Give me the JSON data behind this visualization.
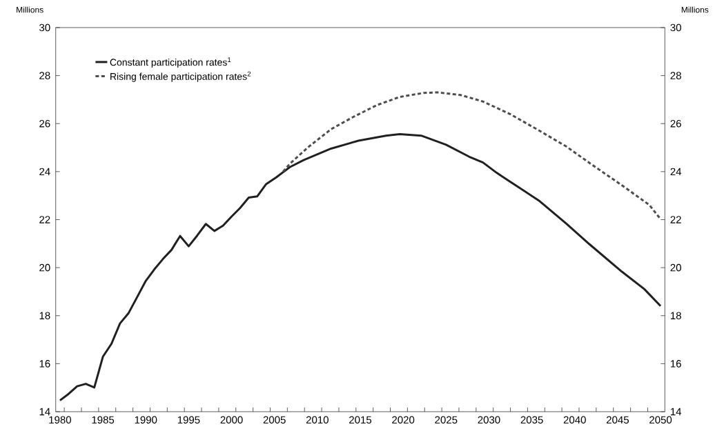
{
  "chart_data": {
    "type": "line",
    "ylabel": "Millions",
    "y2label": "Millions",
    "xlim": [
      1979.5,
      2050.5
    ],
    "xticks": [
      {
        "value": 1980,
        "label": "1980"
      },
      {
        "value": 1985,
        "label": "1985"
      },
      {
        "value": 1990,
        "label": "1990"
      },
      {
        "value": 1995,
        "label": "1995"
      },
      {
        "value": 2000,
        "label": "2000"
      },
      {
        "value": 2005,
        "label": "2005"
      },
      {
        "value": 2010,
        "label": "2010"
      },
      {
        "value": 2015,
        "label": "2015"
      },
      {
        "value": 2020,
        "label": "2020"
      },
      {
        "value": 2025,
        "label": "2025"
      },
      {
        "value": 2030,
        "label": "2030"
      },
      {
        "value": 2035,
        "label": "2035"
      },
      {
        "value": 2040,
        "label": "2040"
      },
      {
        "value": 2045,
        "label": "2045"
      },
      {
        "value": 2050,
        "label": "2050"
      },
      {
        "value": 1980.5,
        "label": null
      },
      {
        "value": 1982.5,
        "label": null
      },
      {
        "value": 1984.5,
        "label": null
      },
      {
        "value": 1986.5,
        "label": null
      },
      {
        "value": 1988.5,
        "label": null
      },
      {
        "value": 1990.5,
        "label": null
      },
      {
        "value": 1992.5,
        "label": null
      },
      {
        "value": 1994.5,
        "label": null
      },
      {
        "value": 1996.5,
        "label": null
      },
      {
        "value": 1998.5,
        "label": null
      },
      {
        "value": 2000.5,
        "label": null
      },
      {
        "value": 2002.5,
        "label": null
      },
      {
        "value": 2004.5,
        "label": null
      },
      {
        "value": 2006.5,
        "label": null
      },
      {
        "value": 2008.5,
        "label": null
      },
      {
        "value": 2010.5,
        "label": null
      },
      {
        "value": 2012.5,
        "label": null
      },
      {
        "value": 2014.5,
        "label": null
      },
      {
        "value": 2016.5,
        "label": null
      },
      {
        "value": 2018.5,
        "label": null
      },
      {
        "value": 2020.5,
        "label": null
      },
      {
        "value": 2022.5,
        "label": null
      },
      {
        "value": 2024.5,
        "label": null
      },
      {
        "value": 2026.5,
        "label": null
      },
      {
        "value": 2028.5,
        "label": null
      },
      {
        "value": 2030.5,
        "label": null
      },
      {
        "value": 2032.5,
        "label": null
      },
      {
        "value": 2034.5,
        "label": null
      },
      {
        "value": 2036.5,
        "label": null
      },
      {
        "value": 2038.5,
        "label": null
      },
      {
        "value": 2040.5,
        "label": null
      },
      {
        "value": 2042.5,
        "label": null
      },
      {
        "value": 2044.5,
        "label": null
      },
      {
        "value": 2046.5,
        "label": null
      },
      {
        "value": 2048.5,
        "label": null
      }
    ],
    "ylim": [
      14,
      30
    ],
    "yticks": [
      14,
      16,
      18,
      20,
      22,
      24,
      26,
      28,
      30
    ],
    "y2lim": [
      14,
      30
    ],
    "y2ticks": [
      14,
      16,
      18,
      20,
      22,
      24,
      26,
      28,
      30
    ],
    "legend": "top left",
    "grid": false,
    "series": [
      {
        "name": "Constant participation rates$^{1}$",
        "color": "#231f20",
        "line_style": "solid",
        "x": [
          1980,
          1981,
          1982,
          1983,
          1984,
          1985,
          1986,
          1987,
          1988,
          1989,
          1990,
          1991,
          1992,
          1993,
          1994,
          1995,
          1996,
          1997,
          1998,
          1999,
          2000,
          2001,
          2002,
          2003,
          2004,
          2005.2,
          2006.8,
          2008.4,
          2011.6,
          2014.8,
          2018,
          2019.6,
          2022.1,
          2025,
          2027.7,
          2029.3,
          2030.9,
          2032.5,
          2035.8,
          2039,
          2041.7,
          2045.5,
          2048.1,
          2050
        ],
        "values": [
          14.47,
          14.74,
          15.06,
          15.16,
          15.01,
          16.29,
          16.83,
          17.68,
          18.11,
          18.78,
          19.45,
          19.93,
          20.36,
          20.74,
          21.32,
          20.89,
          21.34,
          21.82,
          21.53,
          21.75,
          22.13,
          22.49,
          22.92,
          22.97,
          23.47,
          23.76,
          24.19,
          24.48,
          24.96,
          25.29,
          25.5,
          25.56,
          25.5,
          25.12,
          24.62,
          24.38,
          23.95,
          23.57,
          22.8,
          21.84,
          20.98,
          19.83,
          19.11,
          18.4
        ]
      },
      {
        "name": "Rising female participation rates$^{2}$",
        "color": "#4d4d4f",
        "line_style": "dashed",
        "x": [
          2006,
          2006.8,
          2008.9,
          2011.6,
          2014.3,
          2017,
          2019.6,
          2022.4,
          2024,
          2026.7,
          2029.3,
          2032.5,
          2035.8,
          2039,
          2042.2,
          2045.5,
          2048.7,
          2050
        ],
        "values": [
          24.0,
          24.33,
          25.01,
          25.77,
          26.3,
          26.78,
          27.11,
          27.28,
          27.3,
          27.19,
          26.92,
          26.39,
          25.72,
          25.05,
          24.24,
          23.43,
          22.61,
          22.02
        ]
      }
    ]
  }
}
